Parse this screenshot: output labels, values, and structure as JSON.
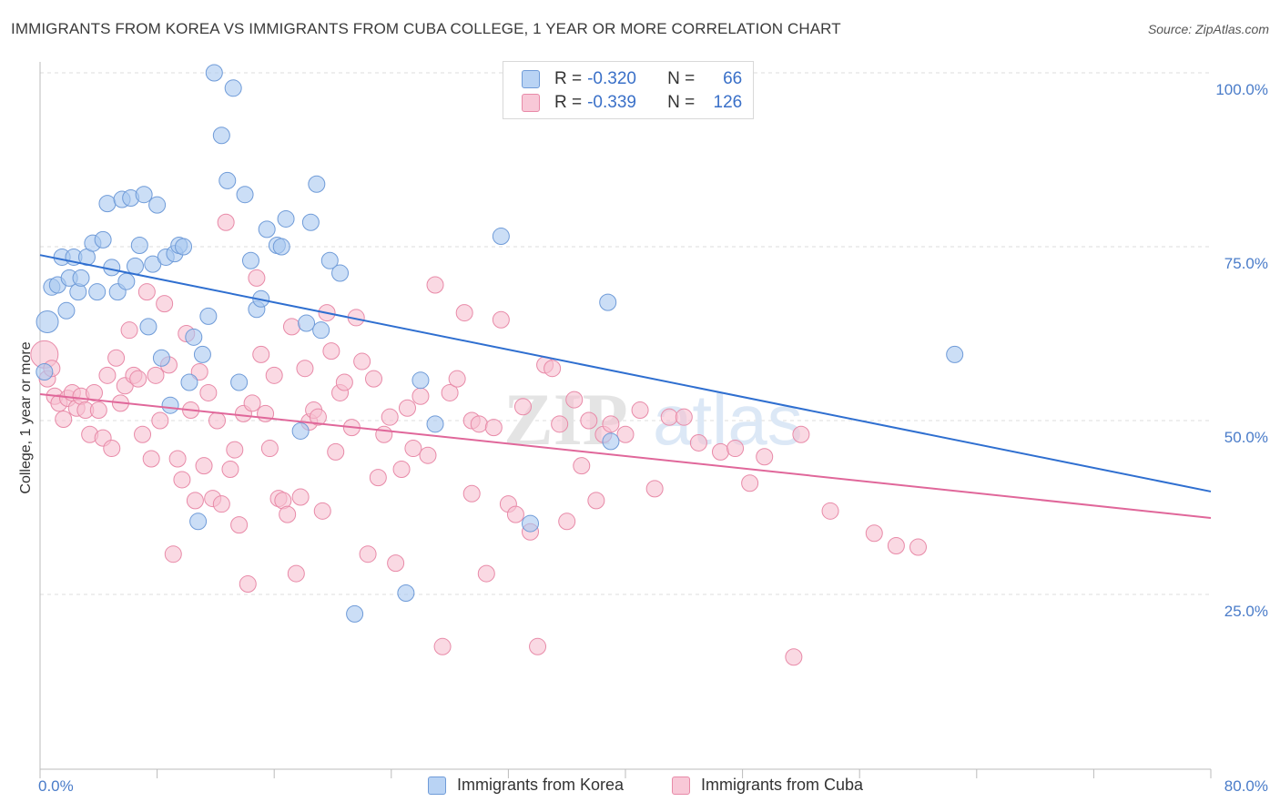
{
  "header": {
    "title": "IMMIGRANTS FROM KOREA VS IMMIGRANTS FROM CUBA COLLEGE, 1 YEAR OR MORE CORRELATION CHART",
    "source": "Source: ZipAtlas.com"
  },
  "watermark": {
    "zip": "ZIP",
    "atlas": "atlas"
  },
  "legend": {
    "korea": {
      "r_label": "R = ",
      "r_value": "-0.320",
      "n_label": "N = ",
      "n_value": "66"
    },
    "cuba": {
      "r_label": "R = ",
      "r_value": "-0.339",
      "n_label": "N = ",
      "n_value": "126"
    }
  },
  "colors": {
    "korea_fill": "#a9c8f0",
    "korea_stroke": "#6f9bd8",
    "korea_line": "#2f6fd0",
    "cuba_fill": "#f7bfd0",
    "cuba_stroke": "#e88aa8",
    "cuba_line": "#e0679a",
    "grid": "#dddddd",
    "tick_label": "#4a7cc9"
  },
  "chart_data": {
    "type": "scatter",
    "title": "IMMIGRANTS FROM KOREA VS IMMIGRANTS FROM CUBA COLLEGE, 1 YEAR OR MORE CORRELATION CHART",
    "xlabel": "",
    "ylabel": "College, 1 year or more",
    "xlim": [
      0,
      80
    ],
    "ylim": [
      0,
      105
    ],
    "x_tick_labels": [
      "0.0%",
      "80.0%"
    ],
    "y_ticks": [
      25,
      50,
      75,
      100
    ],
    "y_tick_labels": [
      "25.0%",
      "50.0%",
      "75.0%",
      "100.0%"
    ],
    "grid": "horizontal dashed",
    "legend_position": "top-center",
    "series": [
      {
        "name": "Immigrants from Korea",
        "r": -0.32,
        "n": 66,
        "trend": [
          [
            0,
            73.8
          ],
          [
            80,
            39.8
          ]
        ],
        "points": [
          [
            0.5,
            64.2
          ],
          [
            0.8,
            69.2
          ],
          [
            1.2,
            69.5
          ],
          [
            1.5,
            73.5
          ],
          [
            1.8,
            65.8
          ],
          [
            2.0,
            70.5
          ],
          [
            2.3,
            73.5
          ],
          [
            2.6,
            68.5
          ],
          [
            2.8,
            70.5
          ],
          [
            3.2,
            73.5
          ],
          [
            3.6,
            75.5
          ],
          [
            3.9,
            68.5
          ],
          [
            4.3,
            76
          ],
          [
            4.6,
            81.2
          ],
          [
            4.9,
            72
          ],
          [
            5.3,
            68.5
          ],
          [
            5.6,
            81.8
          ],
          [
            5.9,
            70
          ],
          [
            6.2,
            82
          ],
          [
            6.5,
            72.2
          ],
          [
            6.8,
            75.2
          ],
          [
            7.1,
            82.5
          ],
          [
            7.4,
            63.5
          ],
          [
            7.7,
            72.5
          ],
          [
            8.0,
            81
          ],
          [
            8.3,
            59
          ],
          [
            8.6,
            73.5
          ],
          [
            8.9,
            52.2
          ],
          [
            9.2,
            74
          ],
          [
            9.5,
            75.2
          ],
          [
            9.8,
            75
          ],
          [
            10.2,
            55.5
          ],
          [
            10.5,
            62
          ],
          [
            10.8,
            35.5
          ],
          [
            11.1,
            59.5
          ],
          [
            11.5,
            65
          ],
          [
            11.9,
            100
          ],
          [
            12.4,
            91
          ],
          [
            12.8,
            84.5
          ],
          [
            13.2,
            97.8
          ],
          [
            13.6,
            55.5
          ],
          [
            14.0,
            82.5
          ],
          [
            14.4,
            73
          ],
          [
            14.8,
            66
          ],
          [
            15.1,
            67.5
          ],
          [
            15.5,
            77.5
          ],
          [
            16.2,
            75.2
          ],
          [
            16.5,
            75
          ],
          [
            16.8,
            79
          ],
          [
            17.8,
            48.5
          ],
          [
            18.2,
            64
          ],
          [
            18.5,
            78.5
          ],
          [
            18.9,
            84
          ],
          [
            19.2,
            63
          ],
          [
            19.8,
            73
          ],
          [
            20.5,
            71.2
          ],
          [
            25.0,
            25.2
          ],
          [
            21.5,
            22.2
          ],
          [
            26.0,
            55.8
          ],
          [
            27.0,
            49.5
          ],
          [
            31.5,
            76.5
          ],
          [
            33.5,
            35.2
          ],
          [
            38.8,
            67
          ],
          [
            39.0,
            47
          ],
          [
            62.5,
            59.5
          ],
          [
            0.3,
            57
          ]
        ]
      },
      {
        "name": "Immigrants from Cuba",
        "r": -0.339,
        "n": 126,
        "trend": [
          [
            0,
            53.8
          ],
          [
            80,
            36
          ]
        ],
        "points": [
          [
            0.3,
            59.5
          ],
          [
            0.5,
            56
          ],
          [
            0.8,
            57.5
          ],
          [
            1.0,
            53.5
          ],
          [
            1.3,
            52.5
          ],
          [
            1.6,
            50.2
          ],
          [
            1.9,
            53.2
          ],
          [
            2.2,
            54
          ],
          [
            2.5,
            51.8
          ],
          [
            2.8,
            53.5
          ],
          [
            3.1,
            51.5
          ],
          [
            3.4,
            48
          ],
          [
            3.7,
            54
          ],
          [
            4.0,
            51.5
          ],
          [
            4.3,
            47.5
          ],
          [
            4.6,
            56.5
          ],
          [
            4.9,
            46
          ],
          [
            5.2,
            59
          ],
          [
            5.5,
            52.5
          ],
          [
            5.8,
            55
          ],
          [
            6.1,
            63
          ],
          [
            6.4,
            56.5
          ],
          [
            6.7,
            56
          ],
          [
            7.0,
            48
          ],
          [
            7.3,
            68.5
          ],
          [
            7.6,
            44.5
          ],
          [
            7.9,
            56.5
          ],
          [
            8.2,
            50
          ],
          [
            8.5,
            66.8
          ],
          [
            8.8,
            58
          ],
          [
            9.1,
            30.8
          ],
          [
            9.4,
            44.5
          ],
          [
            9.7,
            41.5
          ],
          [
            10.0,
            62.5
          ],
          [
            10.3,
            51.5
          ],
          [
            10.6,
            38.5
          ],
          [
            10.9,
            57
          ],
          [
            11.2,
            43.5
          ],
          [
            11.5,
            54
          ],
          [
            11.8,
            38.8
          ],
          [
            12.1,
            50
          ],
          [
            12.4,
            38
          ],
          [
            12.7,
            78.5
          ],
          [
            13.0,
            43
          ],
          [
            13.3,
            45.8
          ],
          [
            13.6,
            35
          ],
          [
            13.9,
            51
          ],
          [
            14.2,
            26.5
          ],
          [
            14.5,
            52.5
          ],
          [
            14.8,
            70.5
          ],
          [
            15.1,
            59.5
          ],
          [
            15.4,
            51
          ],
          [
            15.7,
            46
          ],
          [
            16.0,
            56.5
          ],
          [
            16.3,
            38.8
          ],
          [
            16.6,
            38.5
          ],
          [
            16.9,
            36.5
          ],
          [
            17.2,
            63.5
          ],
          [
            17.5,
            28
          ],
          [
            17.8,
            39
          ],
          [
            18.1,
            57.5
          ],
          [
            18.4,
            49.8
          ],
          [
            18.7,
            51.5
          ],
          [
            19.0,
            50.5
          ],
          [
            19.3,
            37
          ],
          [
            19.6,
            65.5
          ],
          [
            19.9,
            60
          ],
          [
            20.2,
            45.5
          ],
          [
            20.5,
            54
          ],
          [
            20.8,
            55.5
          ],
          [
            21.3,
            49
          ],
          [
            21.6,
            64.8
          ],
          [
            22.0,
            58.5
          ],
          [
            22.4,
            30.8
          ],
          [
            22.8,
            56
          ],
          [
            23.1,
            41.8
          ],
          [
            23.5,
            48
          ],
          [
            23.9,
            50.5
          ],
          [
            24.3,
            29.5
          ],
          [
            24.7,
            43
          ],
          [
            25.1,
            51.8
          ],
          [
            25.5,
            46
          ],
          [
            26.0,
            53.5
          ],
          [
            26.5,
            45
          ],
          [
            27.0,
            69.5
          ],
          [
            27.5,
            17.5
          ],
          [
            28.0,
            54
          ],
          [
            28.5,
            56
          ],
          [
            29.0,
            65.5
          ],
          [
            29.5,
            50
          ],
          [
            30.0,
            49.5
          ],
          [
            30.5,
            28
          ],
          [
            31.0,
            49
          ],
          [
            31.5,
            64.5
          ],
          [
            32.0,
            38
          ],
          [
            32.5,
            36.5
          ],
          [
            33.0,
            52
          ],
          [
            33.5,
            34
          ],
          [
            34.0,
            17.5
          ],
          [
            34.5,
            58
          ],
          [
            35.0,
            57.5
          ],
          [
            35.5,
            49.5
          ],
          [
            36.0,
            35.5
          ],
          [
            36.5,
            53
          ],
          [
            37.0,
            43.5
          ],
          [
            37.5,
            50
          ],
          [
            38.0,
            38.5
          ],
          [
            38.5,
            48
          ],
          [
            39.0,
            49.5
          ],
          [
            40.0,
            48
          ],
          [
            41.0,
            51.5
          ],
          [
            42.0,
            40.2
          ],
          [
            43.0,
            50.5
          ],
          [
            44.0,
            50.5
          ],
          [
            45.0,
            46.8
          ],
          [
            46.5,
            45.5
          ],
          [
            47.5,
            46
          ],
          [
            48.5,
            41
          ],
          [
            49.5,
            44.8
          ],
          [
            51.5,
            16
          ],
          [
            52.0,
            48
          ],
          [
            54.0,
            37
          ],
          [
            57.0,
            33.8
          ],
          [
            58.5,
            32
          ],
          [
            60.0,
            31.8
          ],
          [
            29.5,
            39.5
          ]
        ]
      }
    ]
  },
  "axis": {
    "ylabel": "College, 1 year or more",
    "x_left": "0.0%",
    "x_right": "80.0%",
    "y_ticks": [
      "25.0%",
      "50.0%",
      "75.0%",
      "100.0%"
    ]
  },
  "bottom_legend": {
    "korea": "Immigrants from Korea",
    "cuba": "Immigrants from Cuba"
  }
}
